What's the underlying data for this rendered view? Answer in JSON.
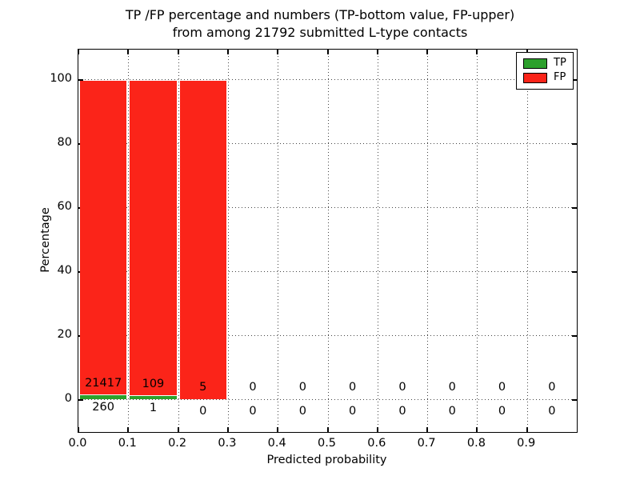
{
  "title": {
    "line1": "TP /FP percentage and numbers (TP-bottom value, FP-upper)",
    "line2": "from among 21792 submitted L-type contacts"
  },
  "chart_data": {
    "type": "bar",
    "stacked": true,
    "title": "TP /FP percentage and numbers (TP-bottom value, FP-upper) from among 21792 submitted L-type contacts",
    "xlabel": "Predicted probability",
    "ylabel": "Percentage",
    "total_submitted": 21792,
    "contact_type": "L-type",
    "grid": "dotted",
    "xticks": [
      "0.0",
      "0.1",
      "0.2",
      "0.3",
      "0.4",
      "0.5",
      "0.6",
      "0.7",
      "0.8",
      "0.9"
    ],
    "yticks": [
      0,
      20,
      40,
      60,
      80,
      100
    ],
    "ylim": [
      -10,
      109
    ],
    "xlim": [
      0,
      1.0
    ],
    "bins": [
      {
        "range": "0.0-0.1",
        "tp_count": 260,
        "fp_count": 21417,
        "tp_pct": 1.2,
        "fp_pct": 98.8
      },
      {
        "range": "0.1-0.2",
        "tp_count": 1,
        "fp_count": 109,
        "tp_pct": 0.91,
        "fp_pct": 99.09
      },
      {
        "range": "0.2-0.3",
        "tp_count": 0,
        "fp_count": 5,
        "tp_pct": 0,
        "fp_pct": 100
      },
      {
        "range": "0.3-0.4",
        "tp_count": 0,
        "fp_count": 0,
        "tp_pct": 0,
        "fp_pct": 0
      },
      {
        "range": "0.4-0.5",
        "tp_count": 0,
        "fp_count": 0,
        "tp_pct": 0,
        "fp_pct": 0
      },
      {
        "range": "0.5-0.6",
        "tp_count": 0,
        "fp_count": 0,
        "tp_pct": 0,
        "fp_pct": 0
      },
      {
        "range": "0.6-0.7",
        "tp_count": 0,
        "fp_count": 0,
        "tp_pct": 0,
        "fp_pct": 0
      },
      {
        "range": "0.7-0.8",
        "tp_count": 0,
        "fp_count": 0,
        "tp_pct": 0,
        "fp_pct": 0
      },
      {
        "range": "0.8-0.9",
        "tp_count": 0,
        "fp_count": 0,
        "tp_pct": 0,
        "fp_pct": 0
      },
      {
        "range": "0.9-1.0",
        "tp_count": 0,
        "fp_count": 0,
        "tp_pct": 0,
        "fp_pct": 0
      }
    ],
    "legend": {
      "position": "upper right",
      "entries": [
        {
          "label": "TP",
          "color": "#2ca02c"
        },
        {
          "label": "FP",
          "color": "#fb2419"
        }
      ]
    }
  }
}
